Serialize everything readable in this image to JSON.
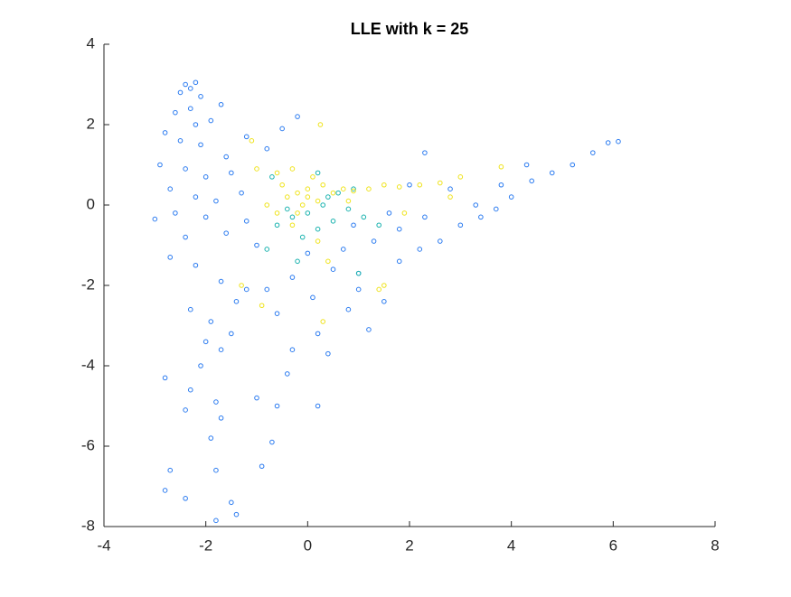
{
  "chart_data": {
    "type": "scatter",
    "title": "LLE with k = 25",
    "xlim": [
      -4,
      8
    ],
    "xticks": [
      -4,
      -2,
      0,
      2,
      4,
      6,
      8
    ],
    "ylim": [
      -8,
      4
    ],
    "yticks": [
      -8,
      -6,
      -4,
      -2,
      0,
      2,
      4
    ],
    "series": [
      {
        "color": "#2b7bf0",
        "x": [
          -2.4,
          -2.3,
          -2.2,
          -2.5,
          -2.1,
          -2.3,
          -2.6,
          -1.9,
          -2.2,
          -1.7,
          -2.8,
          -2.5,
          -2.1,
          -1.6,
          -2.9,
          -2.4,
          -2.0,
          -1.5,
          -2.7,
          -2.2,
          -1.8,
          -1.3,
          -2.6,
          -2.0,
          -3.0,
          -2.4,
          -1.6,
          -1.2,
          -2.7,
          -2.2,
          -1.7,
          -2.3,
          -1.9,
          -1.4,
          -2.0,
          -1.5,
          -2.1,
          -1.7,
          -2.3,
          -1.8,
          -2.4,
          -1.7,
          -2.8,
          -1.9,
          -1.8,
          -2.7,
          -2.8,
          -2.4,
          -1.5,
          -1.4,
          -1.8,
          -0.9,
          -1.0,
          -0.6,
          -0.7,
          -0.4,
          0.2,
          -0.3,
          0.2,
          0.4,
          1.2,
          0.8,
          1.5,
          -0.8,
          -0.3,
          0.5,
          1.0,
          1.8,
          2.2,
          2.6,
          3.0,
          3.4,
          3.7,
          4.0,
          4.4,
          4.8,
          5.2,
          5.6,
          5.9,
          6.1,
          4.3,
          3.8,
          3.3,
          2.8,
          2.3,
          1.8,
          1.3,
          0.9,
          -0.5,
          -0.8,
          -1.2,
          -0.2,
          2.3,
          -1.0,
          0.0,
          0.7,
          1.6,
          2.0,
          -0.6,
          -1.2,
          0.1,
          1.0
        ],
        "y": [
          3.0,
          2.9,
          3.05,
          2.8,
          2.7,
          2.4,
          2.3,
          2.1,
          2.0,
          2.5,
          1.8,
          1.6,
          1.5,
          1.2,
          1.0,
          0.9,
          0.7,
          0.8,
          0.4,
          0.2,
          0.1,
          0.3,
          -0.2,
          -0.3,
          -0.35,
          -0.8,
          -0.7,
          -0.4,
          -1.3,
          -1.5,
          -1.9,
          -2.6,
          -2.9,
          -2.4,
          -3.4,
          -3.2,
          -4.0,
          -3.6,
          -4.6,
          -4.9,
          -5.1,
          -5.3,
          -4.3,
          -5.8,
          -6.6,
          -6.6,
          -7.1,
          -7.3,
          -7.4,
          -7.7,
          -7.85,
          -6.5,
          -4.8,
          -5.0,
          -5.9,
          -4.2,
          -5.0,
          -3.6,
          -3.2,
          -3.7,
          -3.1,
          -2.6,
          -2.4,
          -2.1,
          -1.8,
          -1.6,
          -1.7,
          -1.4,
          -1.1,
          -0.9,
          -0.5,
          -0.3,
          -0.1,
          0.2,
          0.6,
          0.8,
          1.0,
          1.3,
          1.55,
          1.58,
          1.0,
          0.5,
          0.0,
          0.4,
          -0.3,
          -0.6,
          -0.9,
          -0.5,
          1.9,
          1.4,
          1.7,
          2.2,
          1.3,
          -1.0,
          -1.2,
          -1.1,
          -0.2,
          0.5,
          -2.7,
          -2.1,
          -2.3,
          -2.1
        ]
      },
      {
        "color": "#19b2ae",
        "x": [
          0.0,
          -0.3,
          0.3,
          0.5,
          -0.6,
          0.8,
          0.2,
          -0.1,
          1.1,
          0.6,
          -0.4,
          0.4,
          1.4,
          -0.2,
          1.0,
          -0.8,
          0.9,
          -0.7,
          0.2
        ],
        "y": [
          -0.2,
          -0.3,
          0.0,
          -0.4,
          -0.5,
          -0.1,
          -0.6,
          -0.8,
          -0.3,
          0.3,
          -0.1,
          0.2,
          -0.5,
          -1.4,
          -1.7,
          -1.1,
          0.4,
          0.7,
          0.8
        ]
      },
      {
        "color": "#efe31c",
        "x": [
          -0.2,
          0.0,
          -0.4,
          0.2,
          -0.1,
          0.3,
          -0.5,
          0.1,
          -0.3,
          0.5,
          0.7,
          0.9,
          1.2,
          1.5,
          1.8,
          2.2,
          2.6,
          3.0,
          3.8,
          0.25,
          -0.8,
          -1.0,
          -0.6,
          -0.3,
          0.2,
          0.4,
          1.5,
          1.4,
          -1.3,
          -0.9,
          0.3,
          -1.1,
          0.8,
          -0.2,
          0.0,
          -0.6,
          1.9,
          2.8
        ],
        "y": [
          0.3,
          0.4,
          0.2,
          0.1,
          0.0,
          0.5,
          0.5,
          0.7,
          0.9,
          0.3,
          0.4,
          0.35,
          0.4,
          0.5,
          0.45,
          0.5,
          0.55,
          0.7,
          0.95,
          2.0,
          0.0,
          0.9,
          -0.2,
          -0.5,
          -0.9,
          -1.4,
          -2.0,
          -2.1,
          -2.0,
          -2.5,
          -2.9,
          1.6,
          0.1,
          -0.2,
          0.2,
          0.8,
          -0.2,
          0.2
        ]
      }
    ]
  }
}
